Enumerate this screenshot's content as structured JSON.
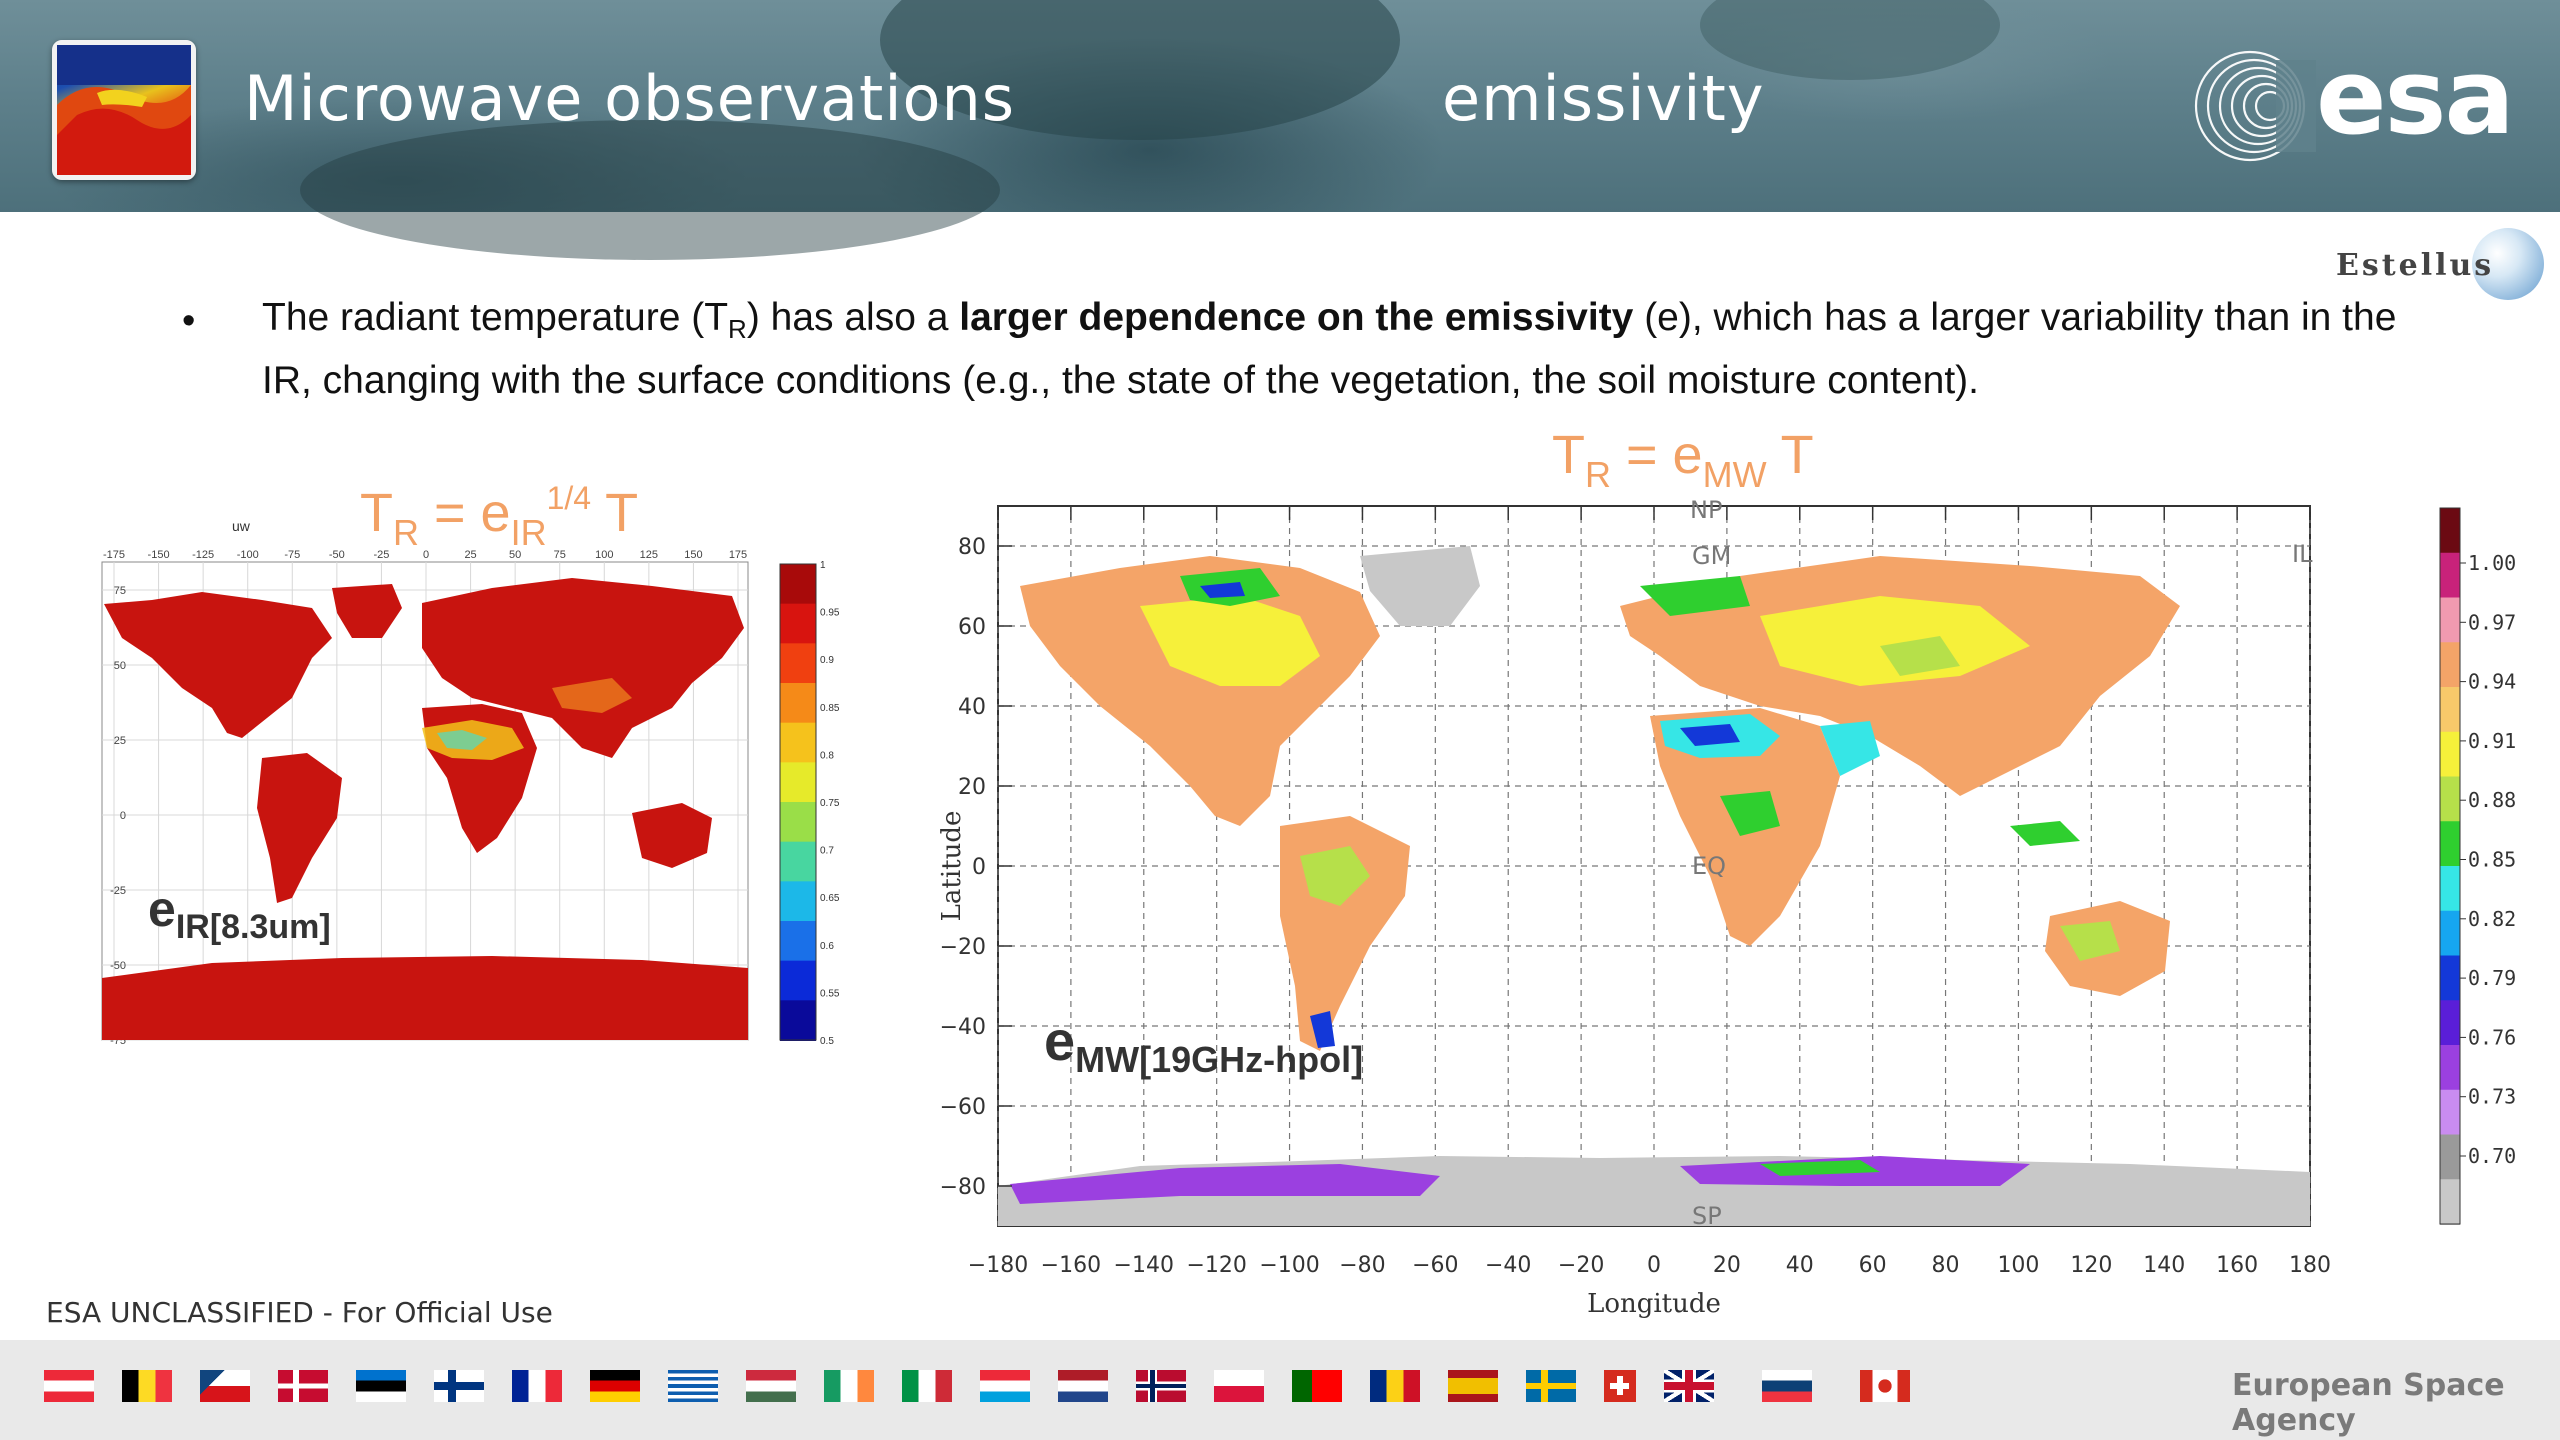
{
  "header": {
    "title": "Microwave observations",
    "subtitle": "emissivity",
    "logo_text": "esa"
  },
  "partner_logo": {
    "text": "Estellus"
  },
  "bullet": {
    "part1": "The radiant temperature (T",
    "part1_sub": "R",
    "part2": ") has also a ",
    "bold": "larger dependence on the emissivity",
    "part3": " (e), which has a larger variability than in the IR, changing with the surface conditions (e.g., the state of the vegetation, the soil moisture content)."
  },
  "formulas": {
    "ir": {
      "base": "T",
      "sub_r": "R",
      "eq": " = e",
      "sub_ir": "IR",
      "sup": "1/4",
      "tail": " T"
    },
    "mw": {
      "base": "T",
      "sub_r": "R",
      "eq": " = e",
      "sub_mw": "MW",
      "tail": " T"
    }
  },
  "ir_map": {
    "corner_label": "uw",
    "overlay_label": {
      "base": "e",
      "sub": "IR[8.3um]"
    },
    "lon_ticks": [
      "-175",
      "-150",
      "-125",
      "-100",
      "-75",
      "-50",
      "-25",
      "0",
      "25",
      "50",
      "75",
      "100",
      "125",
      "150",
      "175"
    ],
    "lat_ticks": [
      "75",
      "50",
      "25",
      "0",
      "-25",
      "-50",
      "-75"
    ],
    "colorbar_ticks": [
      "1",
      "0.95",
      "0.9",
      "0.85",
      "0.8",
      "0.75",
      "0.7",
      "0.65",
      "0.6",
      "0.55",
      "0.5"
    ]
  },
  "mw_map": {
    "overlay_label": {
      "base": "e",
      "sub": "MW[19GHz-hpol]"
    },
    "ylabel": "Latitude",
    "xlabel": "Longitude",
    "y_ticks": [
      "80",
      "60",
      "40",
      "20",
      "0",
      "−20",
      "−40",
      "−60",
      "−80"
    ],
    "x_ticks": [
      "−180",
      "−160",
      "−140",
      "−120",
      "−100",
      "−80",
      "−60",
      "−40",
      "−20",
      "0",
      "20",
      "40",
      "60",
      "80",
      "100",
      "120",
      "140",
      "160",
      "180"
    ],
    "map_labels": {
      "np": "NP",
      "gm": "GM",
      "eq": "EQ",
      "sp": "SP",
      "il": "IL"
    },
    "colorbar_ticks": [
      "1.00",
      "0.97",
      "0.94",
      "0.91",
      "0.88",
      "0.85",
      "0.82",
      "0.79",
      "0.76",
      "0.73",
      "0.70"
    ],
    "colorbar_colors": [
      "#6b0a12",
      "#c8227a",
      "#f09ab0",
      "#f4a468",
      "#f7c96a",
      "#f6f03a",
      "#b6e04a",
      "#2fcf2f",
      "#36e6e6",
      "#16a6f0",
      "#1338d8",
      "#5a1ed8",
      "#9b40e0",
      "#c98cf0",
      "#9a9a9a",
      "#c8c8c8"
    ]
  },
  "footer": {
    "classification": "ESA UNCLASSIFIED - For Official Use",
    "agency": "European Space Agency"
  }
}
